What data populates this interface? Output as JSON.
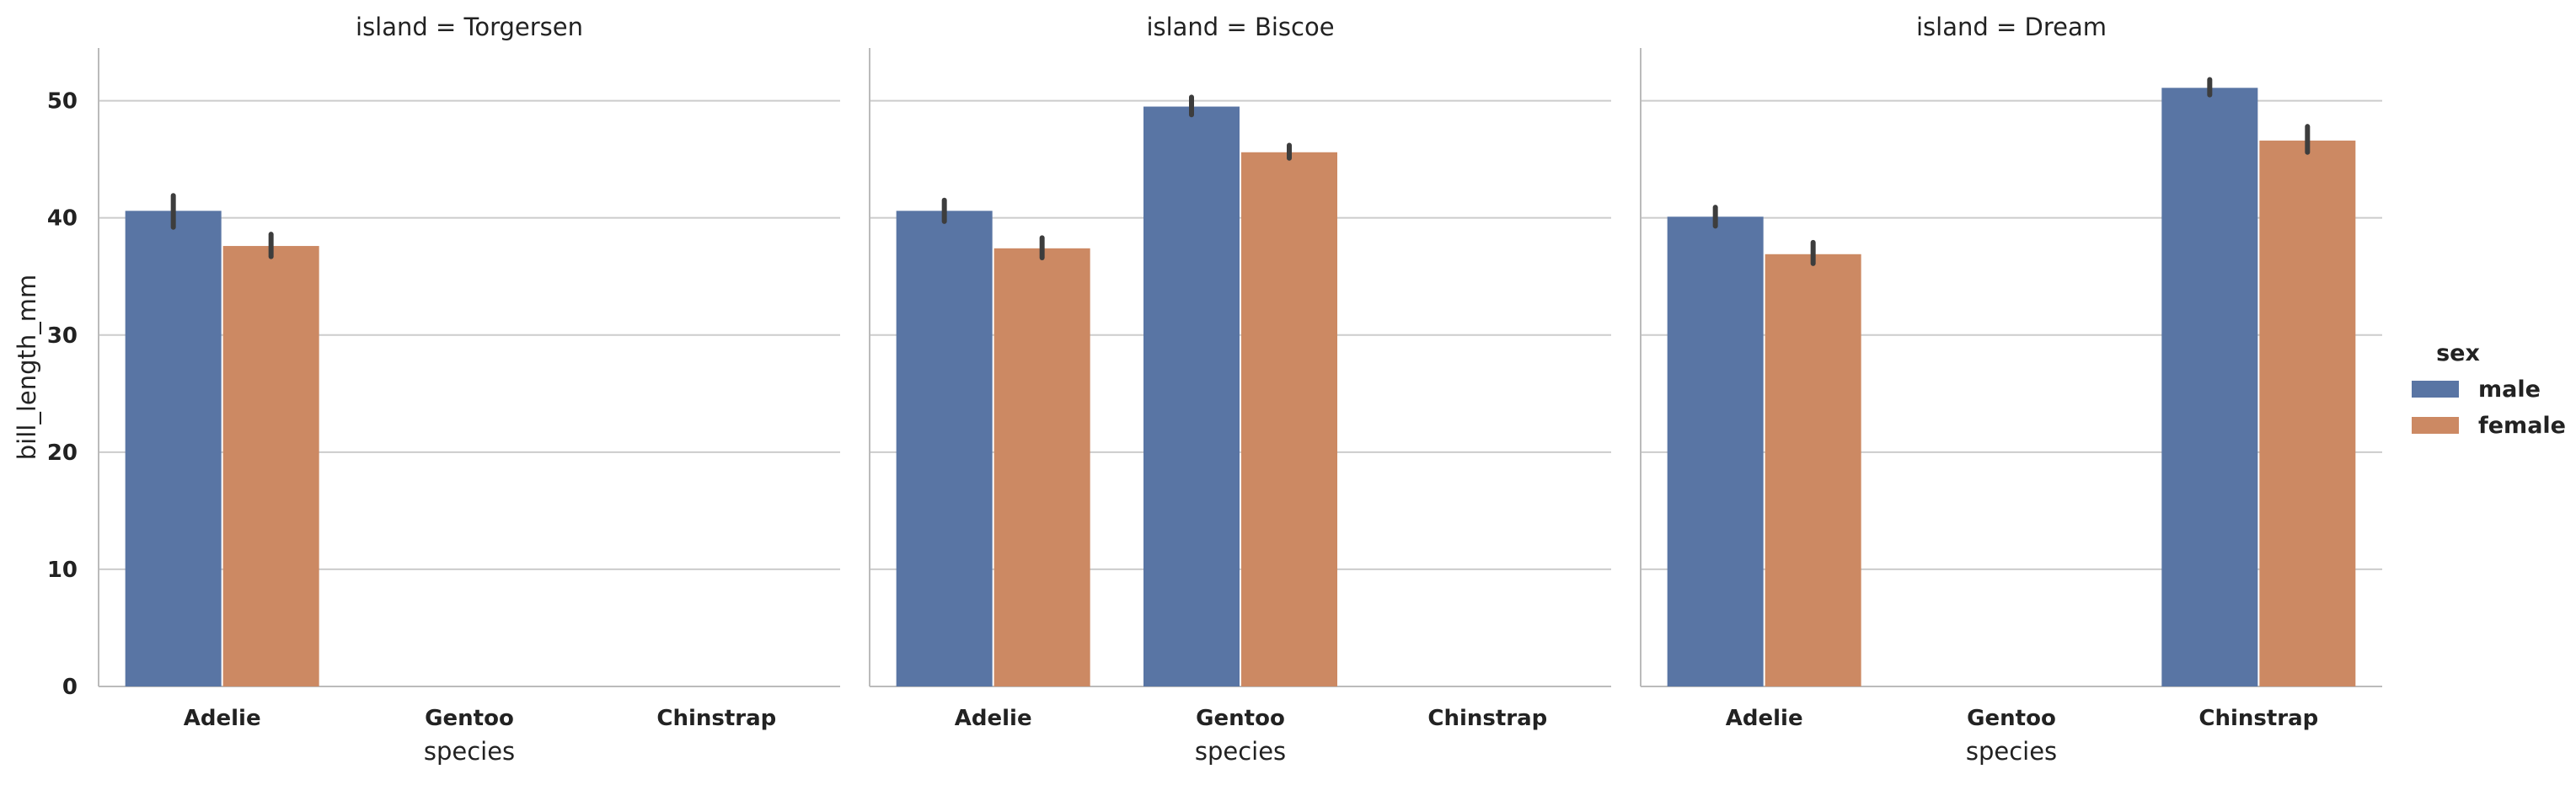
{
  "chart_data": {
    "type": "bar",
    "facet_variable": "island",
    "xlabel": "species",
    "ylabel": "bill_length_mm",
    "ylim": [
      0,
      54.5
    ],
    "yticks": [
      0,
      10,
      20,
      30,
      40,
      50
    ],
    "categories": [
      "Adelie",
      "Gentoo",
      "Chinstrap"
    ],
    "grid": "horizontal",
    "legend": {
      "title": "sex",
      "placement": "right",
      "entries": [
        "male",
        "female"
      ]
    },
    "colors": {
      "male": "#5975a4",
      "female": "#cc8963"
    },
    "panels": [
      {
        "title": "island = Torgersen",
        "series": [
          {
            "name": "male",
            "values": [
              40.6,
              null,
              null
            ],
            "ci": [
              [
                39.2,
                41.9
              ],
              null,
              null
            ]
          },
          {
            "name": "female",
            "values": [
              37.6,
              null,
              null
            ],
            "ci": [
              [
                36.7,
                38.6
              ],
              null,
              null
            ]
          }
        ]
      },
      {
        "title": "island = Biscoe",
        "series": [
          {
            "name": "male",
            "values": [
              40.6,
              49.5,
              null
            ],
            "ci": [
              [
                39.7,
                41.5
              ],
              [
                48.8,
                50.3
              ],
              null
            ]
          },
          {
            "name": "female",
            "values": [
              37.4,
              45.6,
              null
            ],
            "ci": [
              [
                36.6,
                38.3
              ],
              [
                45.1,
                46.2
              ],
              null
            ]
          }
        ]
      },
      {
        "title": "island = Dream",
        "series": [
          {
            "name": "male",
            "values": [
              40.1,
              null,
              51.1
            ],
            "ci": [
              [
                39.3,
                40.9
              ],
              null,
              [
                50.5,
                51.8
              ]
            ]
          },
          {
            "name": "female",
            "values": [
              36.9,
              null,
              46.6
            ],
            "ci": [
              [
                36.1,
                37.9
              ],
              null,
              [
                45.6,
                47.8
              ]
            ]
          }
        ]
      }
    ]
  }
}
